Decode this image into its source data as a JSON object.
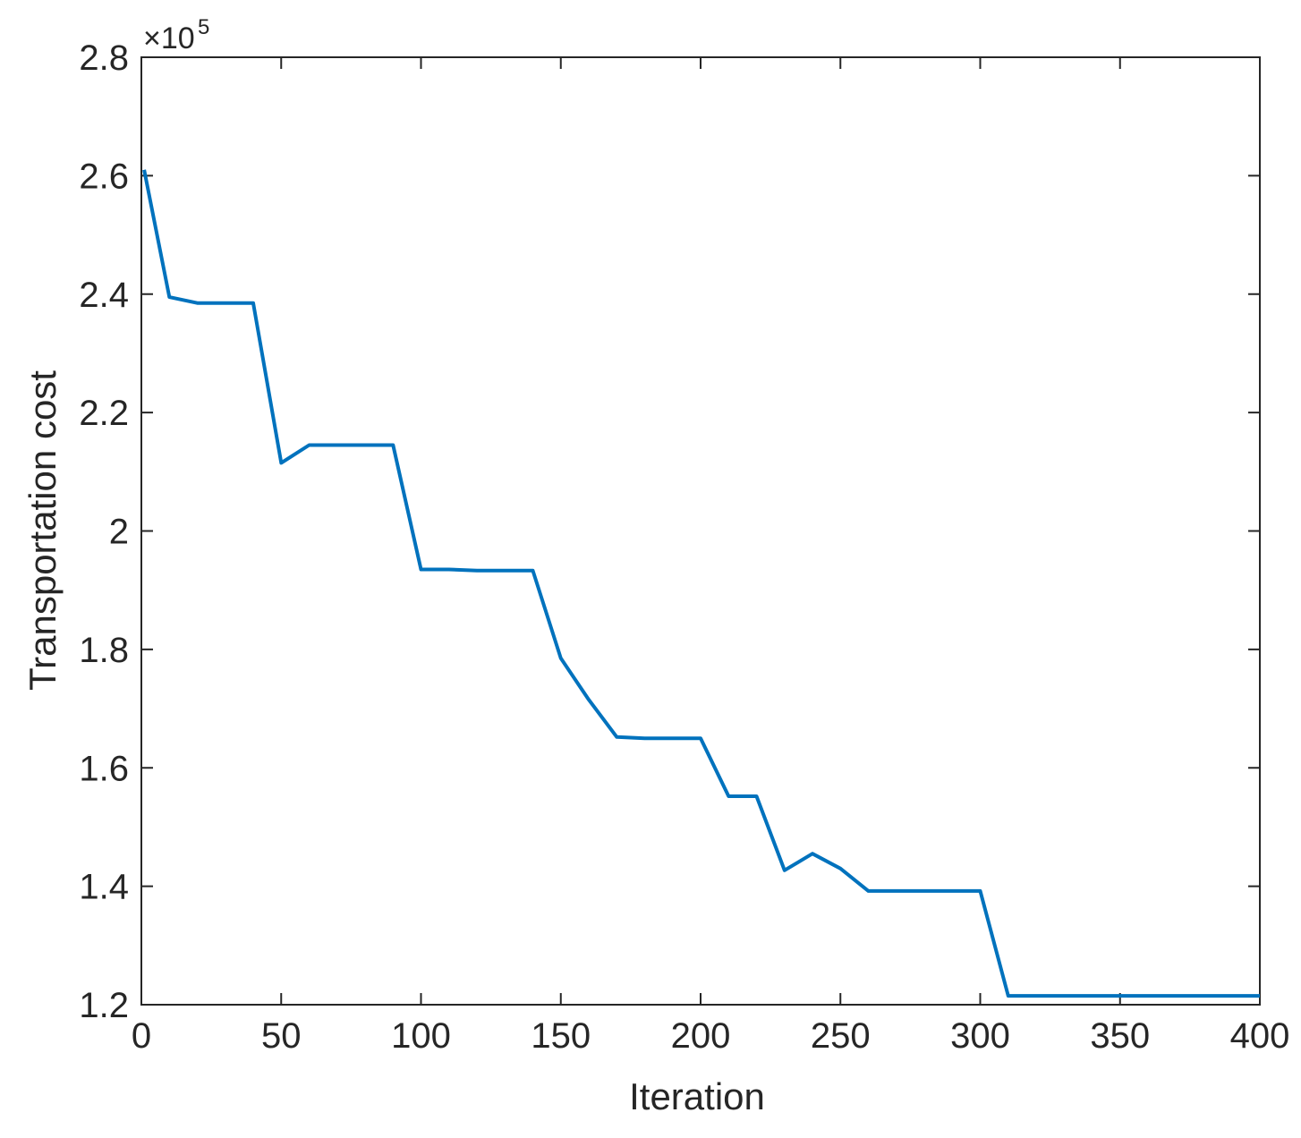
{
  "chart_data": {
    "type": "line",
    "title": "",
    "xlabel": "Iteration",
    "ylabel": "Transportation cost",
    "y_exponent_label": "×10",
    "y_exponent_power": "5",
    "xlim": [
      0,
      400
    ],
    "ylim": [
      1.2,
      2.8
    ],
    "x_ticks": [
      0,
      50,
      100,
      150,
      200,
      250,
      300,
      350,
      400
    ],
    "x_tick_labels": [
      "0",
      "50",
      "100",
      "150",
      "200",
      "250",
      "300",
      "350",
      "400"
    ],
    "y_ticks": [
      1.2,
      1.4,
      1.6,
      1.8,
      2.0,
      2.2,
      2.4,
      2.6,
      2.8
    ],
    "y_tick_labels": [
      "1.2",
      "1.4",
      "1.6",
      "1.8",
      "2",
      "2.2",
      "2.4",
      "2.6",
      "2.8"
    ],
    "grid": false,
    "line_color": "#0072BD",
    "series": [
      {
        "x": [
          1,
          10,
          20,
          30,
          40,
          50,
          60,
          70,
          80,
          90,
          100,
          110,
          120,
          130,
          140,
          150,
          160,
          170,
          180,
          190,
          200,
          210,
          220,
          230,
          240,
          250,
          260,
          270,
          280,
          290,
          300,
          310,
          320,
          330,
          340,
          350,
          360,
          370,
          380,
          390,
          400
        ],
        "y": [
          2.61,
          2.395,
          2.385,
          2.385,
          2.385,
          2.115,
          2.145,
          2.145,
          2.145,
          2.145,
          1.935,
          1.935,
          1.933,
          1.933,
          1.933,
          1.785,
          1.715,
          1.652,
          1.65,
          1.65,
          1.65,
          1.552,
          1.552,
          1.427,
          1.455,
          1.43,
          1.392,
          1.392,
          1.392,
          1.392,
          1.392,
          1.215,
          1.215,
          1.215,
          1.215,
          1.215,
          1.215,
          1.215,
          1.215,
          1.215,
          1.215
        ]
      }
    ]
  }
}
